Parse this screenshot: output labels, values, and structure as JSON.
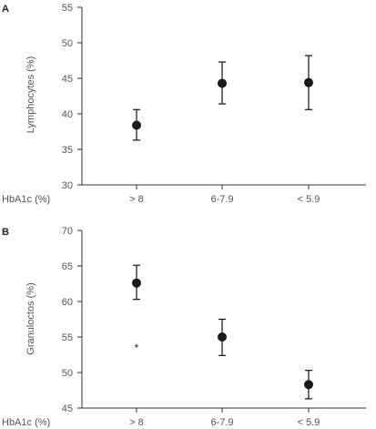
{
  "chart_data": [
    {
      "type": "scatter",
      "panel": "A",
      "categories": [
        "> 8",
        "6-7.9",
        "< 5.9"
      ],
      "ylabel": "Lymphocytes (%)",
      "xlabel": "HbA1c (%)",
      "ylim": [
        30,
        55
      ],
      "yticks": [
        30,
        35,
        40,
        45,
        50,
        55
      ],
      "series": [
        {
          "values": [
            38.4,
            44.3,
            44.4
          ],
          "err_low": [
            36.3,
            41.4,
            40.6
          ],
          "err_high": [
            40.6,
            47.3,
            48.2
          ]
        }
      ],
      "annotations": []
    },
    {
      "type": "scatter",
      "panel": "B",
      "categories": [
        "> 8",
        "6-7.9",
        "< 5.9"
      ],
      "ylabel": "Granuloctos (%)",
      "xlabel": "HbA1c (%)",
      "ylim": [
        45,
        70
      ],
      "yticks": [
        45,
        50,
        55,
        60,
        65,
        70
      ],
      "series": [
        {
          "values": [
            62.6,
            55.0,
            48.3
          ],
          "err_low": [
            60.3,
            52.4,
            46.3
          ],
          "err_high": [
            65.1,
            57.5,
            50.3
          ]
        }
      ],
      "annotations": [
        {
          "text": "*",
          "category": "> 8",
          "y": 54.0
        }
      ]
    }
  ]
}
